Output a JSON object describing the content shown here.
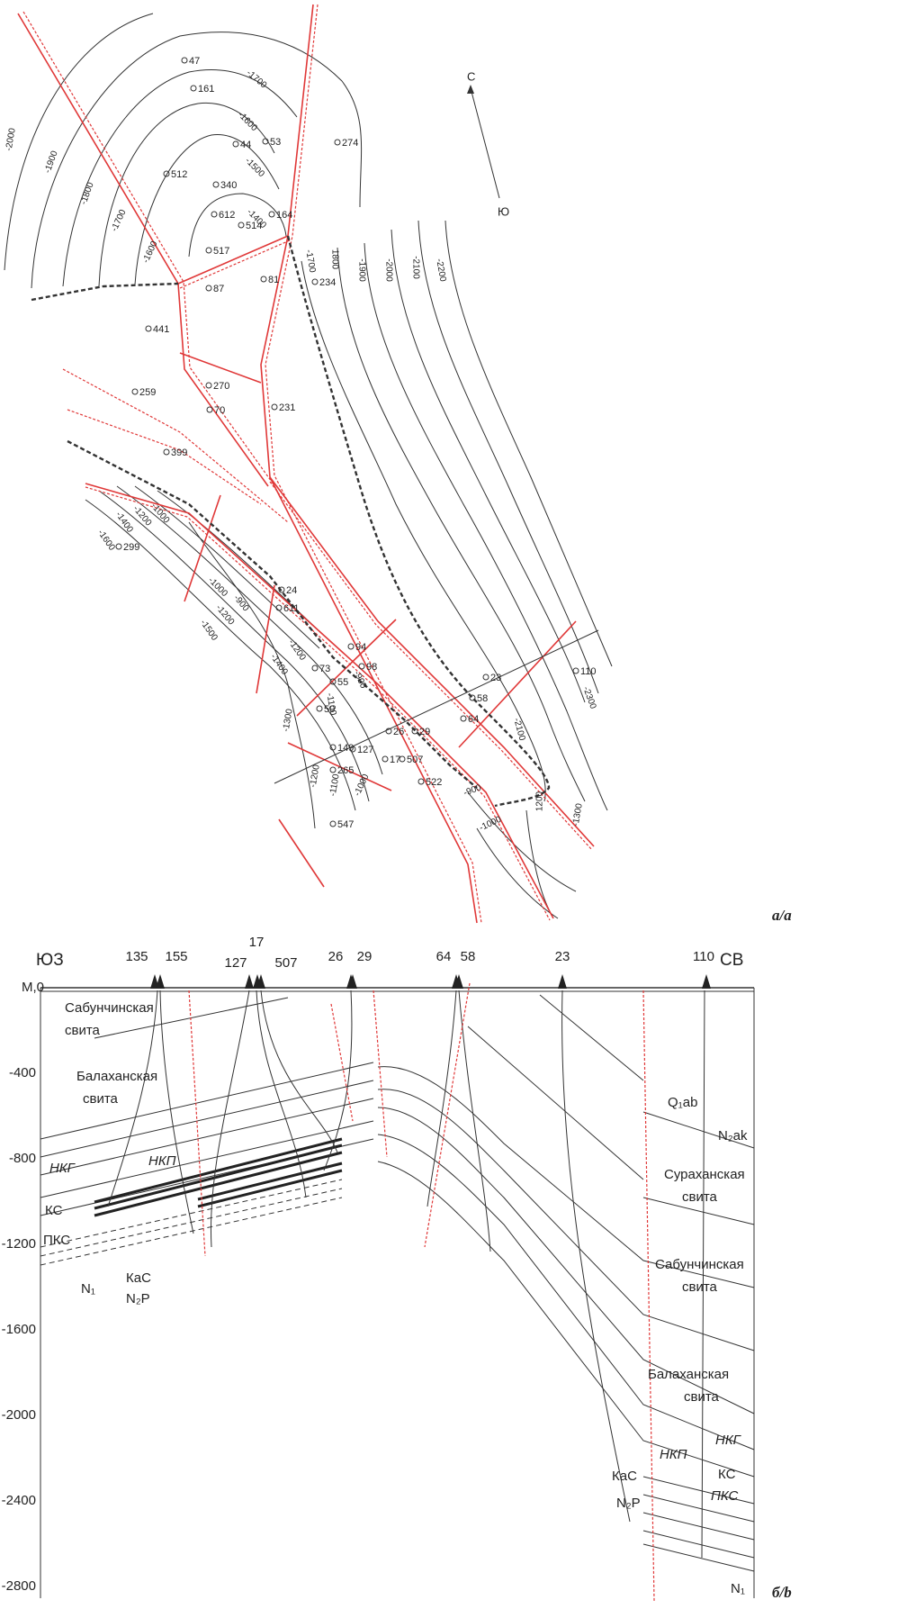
{
  "map": {
    "wells": [
      "47",
      "161",
      "44",
      "53",
      "274",
      "512",
      "340",
      "612",
      "514",
      "164",
      "517",
      "81",
      "87",
      "234",
      "441",
      "259",
      "270",
      "70",
      "231",
      "399",
      "299",
      "24",
      "611",
      "94",
      "98",
      "73",
      "55",
      "23",
      "110",
      "50",
      "58",
      "26",
      "29",
      "64",
      "149",
      "127",
      "17",
      "507",
      "522",
      "265",
      "547"
    ],
    "contours": [
      "-2000",
      "-1900",
      "-1800",
      "-1700",
      "-1600",
      "-1700",
      "-1600",
      "-1500",
      "-1400",
      "-1700",
      "1800",
      "-1900",
      "-2000",
      "-2100",
      "-2200",
      "-1600",
      "-1400",
      "-1200",
      "-1000",
      "-1500",
      "-1200",
      "-900",
      "-1000",
      "-1400",
      "-1200",
      "-1300",
      "-1100",
      "-900",
      "-1200",
      "-1100",
      "-1000",
      "-900",
      "-1000",
      "1200",
      "-1300",
      "-2100",
      "-2300"
    ],
    "north": "С",
    "south": "Ю",
    "caption": "a/a"
  },
  "section": {
    "sw": "ЮЗ",
    "ne": "СВ",
    "caption": "б/b",
    "wells": [
      "135",
      "155",
      "17",
      "127",
      "507",
      "26",
      "29",
      "64",
      "58",
      "23",
      "110"
    ],
    "depth_labels": [
      "М,0",
      "-400",
      "-800",
      "-1200",
      "-1600",
      "-2000",
      "-2400",
      "-2800"
    ],
    "units_left": [
      "Сабунчинская",
      "свита",
      "Балаханская",
      "свита",
      "НКГ",
      "НКП",
      "КС",
      "ПКС",
      "КаС",
      "N₂P",
      "N₁"
    ],
    "units_right": [
      "Q₁ab",
      "N₂ak",
      "Сураханская",
      "свита",
      "Сабунчинская",
      "свита",
      "Балаханская",
      "свита",
      "НКГ",
      "НКП",
      "КС",
      "ПКС",
      "КаС",
      "N₂P",
      "N₁"
    ]
  }
}
